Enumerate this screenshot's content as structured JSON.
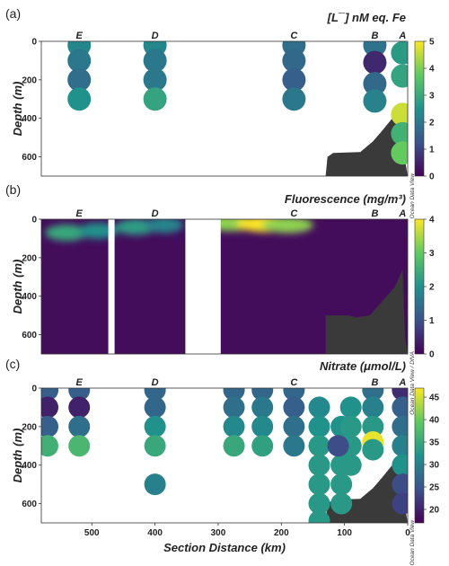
{
  "chart_data": [
    {
      "panel_label": "(a)",
      "type": "scatter",
      "title": "[L¯] nM eq. Fe",
      "ylabel": "Depth (m)",
      "xlim": [
        580,
        0
      ],
      "ylim": [
        0,
        700
      ],
      "y_ticks": [
        "0",
        "200",
        "400",
        "600"
      ],
      "colorbar": {
        "min": 0,
        "max": 5,
        "ticks": [
          "0",
          "1",
          "2",
          "3",
          "4",
          "5"
        ],
        "colors": [
          "#440154",
          "#3b528b",
          "#21918c",
          "#5ec962",
          "#fde725"
        ]
      },
      "watermark": "Ocean Data View",
      "station_labels": [
        {
          "name": "E",
          "x": 520
        },
        {
          "name": "D",
          "x": 400
        },
        {
          "name": "C",
          "x": 180
        },
        {
          "name": "B",
          "x": 52
        },
        {
          "name": "A",
          "x": 8
        }
      ],
      "points": [
        {
          "x": 520,
          "y": 20,
          "value": 2.3
        },
        {
          "x": 520,
          "y": 100,
          "value": 2.0
        },
        {
          "x": 520,
          "y": 200,
          "value": 1.8
        },
        {
          "x": 520,
          "y": 300,
          "value": 2.5
        },
        {
          "x": 400,
          "y": 20,
          "value": 2.3
        },
        {
          "x": 400,
          "y": 100,
          "value": 2.0
        },
        {
          "x": 400,
          "y": 200,
          "value": 2.0
        },
        {
          "x": 400,
          "y": 300,
          "value": 2.9
        },
        {
          "x": 180,
          "y": 20,
          "value": 1.8
        },
        {
          "x": 180,
          "y": 100,
          "value": 1.7
        },
        {
          "x": 180,
          "y": 200,
          "value": 1.5
        },
        {
          "x": 180,
          "y": 300,
          "value": 2.0
        },
        {
          "x": 52,
          "y": 20,
          "value": 1.9
        },
        {
          "x": 52,
          "y": 110,
          "value": 0.6
        },
        {
          "x": 52,
          "y": 220,
          "value": 1.7
        },
        {
          "x": 52,
          "y": 310,
          "value": 2.2
        },
        {
          "x": 8,
          "y": 60,
          "value": 2.7
        },
        {
          "x": 8,
          "y": 180,
          "value": 2.9
        },
        {
          "x": 8,
          "y": 380,
          "value": 4.6
        },
        {
          "x": 8,
          "y": 480,
          "value": 3.2
        },
        {
          "x": 8,
          "y": 580,
          "value": 3.8
        }
      ]
    },
    {
      "panel_label": "(b)",
      "type": "heatmap",
      "title": "Fluorescence (mg/m³)",
      "ylabel": "Depth (m)",
      "xlim": [
        580,
        0
      ],
      "ylim": [
        0,
        700
      ],
      "y_ticks": [
        "0",
        "200",
        "400",
        "600"
      ],
      "colorbar": {
        "min": 0,
        "max": 4,
        "ticks": [
          "0",
          "1",
          "2",
          "3",
          "4"
        ],
        "colors": [
          "#440154",
          "#3b528b",
          "#21918c",
          "#5ec962",
          "#fde725"
        ]
      },
      "watermark": "Ocean Data View / DIVA",
      "background_value": 0.15,
      "gaps_km": [
        [
          474,
          464
        ],
        [
          352,
          296
        ]
      ],
      "station_labels": [
        {
          "name": "E",
          "x": 520
        },
        {
          "name": "D",
          "x": 400
        },
        {
          "name": "C",
          "x": 180
        },
        {
          "name": "B",
          "x": 52
        },
        {
          "name": "A",
          "x": 8
        }
      ],
      "features": [
        {
          "x": 540,
          "y": 70,
          "value": 2.4
        },
        {
          "x": 490,
          "y": 60,
          "value": 2.0
        },
        {
          "x": 430,
          "y": 40,
          "value": 2.2
        },
        {
          "x": 385,
          "y": 30,
          "value": 1.8
        },
        {
          "x": 280,
          "y": 20,
          "value": 3.3
        },
        {
          "x": 225,
          "y": 25,
          "value": 4.0
        },
        {
          "x": 190,
          "y": 30,
          "value": 3.3
        }
      ]
    },
    {
      "panel_label": "(c)",
      "type": "scatter",
      "title": "Nitrate (μmol/L)",
      "ylabel": "Depth (m)",
      "xlabel": "Section Distance (km)",
      "xlim": [
        580,
        0
      ],
      "ylim": [
        0,
        700
      ],
      "x_ticks": [
        "500",
        "400",
        "300",
        "200",
        "100",
        "0"
      ],
      "y_ticks": [
        "0",
        "200",
        "400",
        "600"
      ],
      "colorbar": {
        "min": 17,
        "max": 47,
        "ticks": [
          "20",
          "25",
          "30",
          "35",
          "40",
          "45"
        ],
        "colors": [
          "#440154",
          "#3b528b",
          "#21918c",
          "#5ec962",
          "#fde725"
        ]
      },
      "watermark": "Ocean Data View",
      "station_labels": [
        {
          "name": "E",
          "x": 520
        },
        {
          "name": "D",
          "x": 400
        },
        {
          "name": "C",
          "x": 180
        },
        {
          "name": "B",
          "x": 52
        },
        {
          "name": "A",
          "x": 8
        }
      ],
      "points": [
        {
          "x": 570,
          "y": 10,
          "value": 26
        },
        {
          "x": 570,
          "y": 100,
          "value": 20
        },
        {
          "x": 570,
          "y": 200,
          "value": 26
        },
        {
          "x": 570,
          "y": 300,
          "value": 36
        },
        {
          "x": 520,
          "y": 10,
          "value": 26
        },
        {
          "x": 520,
          "y": 100,
          "value": 20
        },
        {
          "x": 520,
          "y": 200,
          "value": 28
        },
        {
          "x": 520,
          "y": 300,
          "value": 37
        },
        {
          "x": 400,
          "y": 10,
          "value": 27
        },
        {
          "x": 400,
          "y": 100,
          "value": 27
        },
        {
          "x": 400,
          "y": 200,
          "value": 32
        },
        {
          "x": 400,
          "y": 300,
          "value": 35
        },
        {
          "x": 400,
          "y": 500,
          "value": 30
        },
        {
          "x": 275,
          "y": 10,
          "value": 27
        },
        {
          "x": 275,
          "y": 100,
          "value": 28
        },
        {
          "x": 275,
          "y": 200,
          "value": 31
        },
        {
          "x": 275,
          "y": 300,
          "value": 35
        },
        {
          "x": 230,
          "y": 10,
          "value": 27
        },
        {
          "x": 230,
          "y": 100,
          "value": 29
        },
        {
          "x": 230,
          "y": 200,
          "value": 31
        },
        {
          "x": 230,
          "y": 300,
          "value": 34
        },
        {
          "x": 180,
          "y": 10,
          "value": 27
        },
        {
          "x": 180,
          "y": 100,
          "value": 26
        },
        {
          "x": 180,
          "y": 200,
          "value": 28
        },
        {
          "x": 180,
          "y": 300,
          "value": 29
        },
        {
          "x": 140,
          "y": 100,
          "value": 31
        },
        {
          "x": 140,
          "y": 200,
          "value": 32
        },
        {
          "x": 140,
          "y": 300,
          "value": 33
        },
        {
          "x": 140,
          "y": 400,
          "value": 33
        },
        {
          "x": 140,
          "y": 500,
          "value": 33
        },
        {
          "x": 140,
          "y": 600,
          "value": 33
        },
        {
          "x": 140,
          "y": 690,
          "value": 33
        },
        {
          "x": 105,
          "y": 200,
          "value": 32
        },
        {
          "x": 105,
          "y": 300,
          "value": 33
        },
        {
          "x": 105,
          "y": 400,
          "value": 33
        },
        {
          "x": 105,
          "y": 500,
          "value": 33
        },
        {
          "x": 105,
          "y": 600,
          "value": 33
        },
        {
          "x": 90,
          "y": 100,
          "value": 32
        },
        {
          "x": 90,
          "y": 200,
          "value": 33
        },
        {
          "x": 90,
          "y": 300,
          "value": 33
        },
        {
          "x": 90,
          "y": 400,
          "value": 33
        },
        {
          "x": 110,
          "y": 300,
          "value": 24
        },
        {
          "x": 55,
          "y": 10,
          "value": 28
        },
        {
          "x": 55,
          "y": 100,
          "value": 30
        },
        {
          "x": 55,
          "y": 200,
          "value": 33
        },
        {
          "x": 55,
          "y": 280,
          "value": 46
        },
        {
          "x": 55,
          "y": 320,
          "value": 33
        },
        {
          "x": 8,
          "y": 10,
          "value": 21
        },
        {
          "x": 8,
          "y": 100,
          "value": 26
        },
        {
          "x": 8,
          "y": 200,
          "value": 28
        },
        {
          "x": 8,
          "y": 300,
          "value": 30
        },
        {
          "x": 8,
          "y": 400,
          "value": 32
        },
        {
          "x": 8,
          "y": 500,
          "value": 24
        },
        {
          "x": 8,
          "y": 600,
          "value": 23
        }
      ]
    }
  ]
}
